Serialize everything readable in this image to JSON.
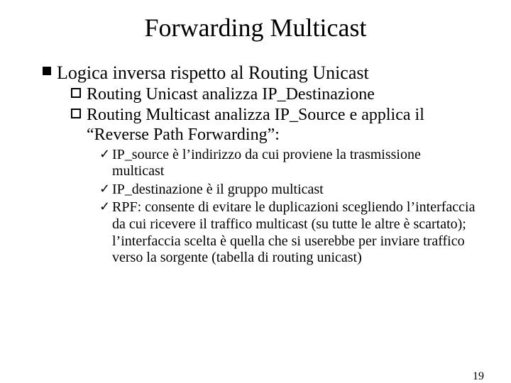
{
  "title": "Forwarding Multicast",
  "level1": {
    "text": "Logica inversa rispetto al Routing  Unicast"
  },
  "level2": [
    {
      "text": "Routing Unicast analizza IP_Destinazione"
    },
    {
      "text": "Routing Multicast analizza IP_Source e applica il “Reverse Path Forwarding”:"
    }
  ],
  "level3": [
    {
      "text": " IP_source è l’indirizzo da cui proviene la trasmissione multicast"
    },
    {
      "text": "IP_destinazione è il gruppo multicast"
    },
    {
      "text": " RPF: consente di evitare le duplicazioni scegliendo l’interfaccia da cui ricevere il traffico multicast (su tutte le altre è scartato); l’interfaccia scelta è quella che si userebbe per inviare traffico verso la sorgente (tabella di routing unicast)"
    }
  ],
  "pageNumber": "19",
  "style": {
    "background_color": "#ffffff",
    "text_color": "#000000",
    "font_family": "Times New Roman",
    "title_fontsize": 36,
    "level1_fontsize": 26,
    "level2_fontsize": 24,
    "level3_fontsize": 20,
    "pagenum_fontsize": 16,
    "level1_bullet": "filled-square",
    "level2_bullet": "hollow-square",
    "level3_bullet": "checkmark",
    "checkmark_glyph": "✓"
  }
}
